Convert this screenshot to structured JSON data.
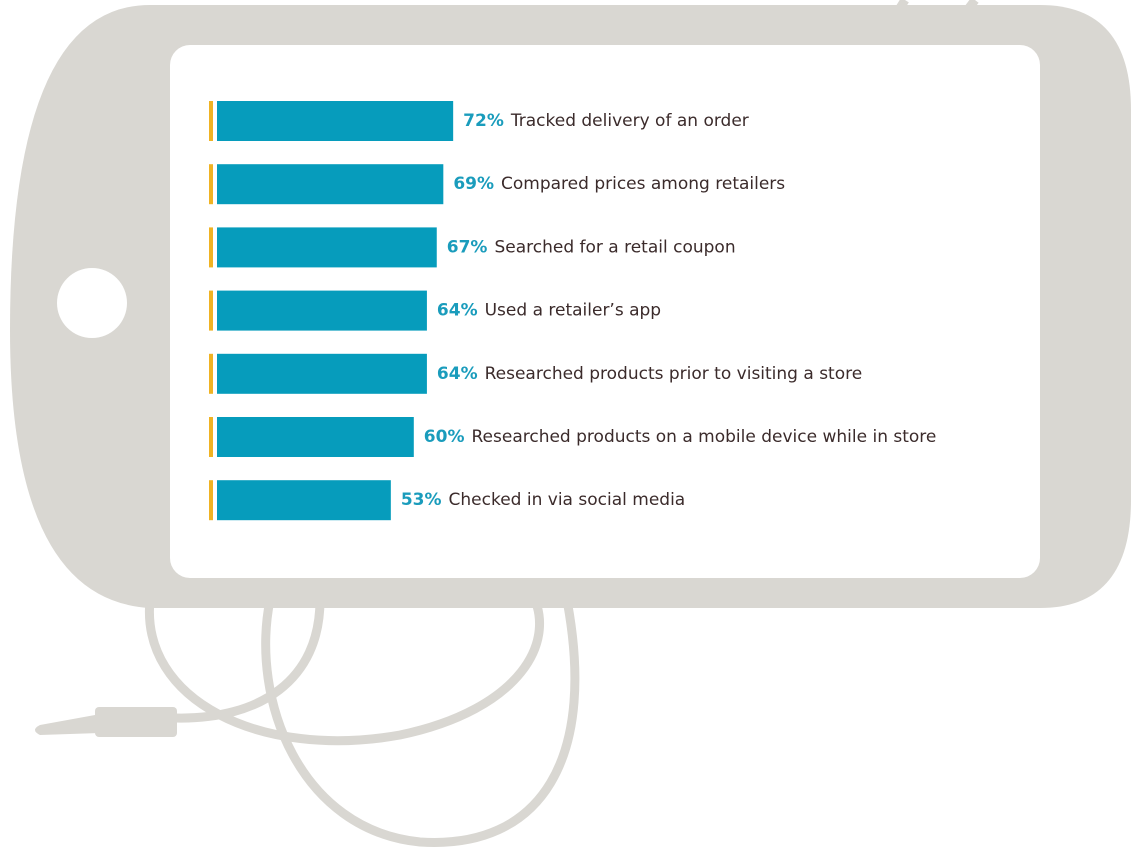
{
  "chart_data": {
    "type": "bar",
    "orientation": "horizontal",
    "categories": [
      "Tracked delivery of an order",
      "Compared prices among retailers",
      "Searched for a retail coupon",
      "Used a retailer’s app",
      "Researched products prior to visiting a store",
      "Researched products on a mobile device while in store",
      "Checked in via social media"
    ],
    "values": [
      72,
      69,
      67,
      64,
      64,
      60,
      53
    ],
    "value_labels": [
      "72%",
      "69%",
      "67%",
      "64%",
      "64%",
      "60%",
      "53%"
    ],
    "color": "#069cbc",
    "accent_color": "#f0b323"
  }
}
